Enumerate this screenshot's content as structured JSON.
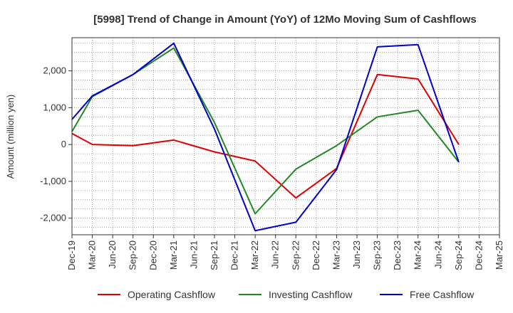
{
  "chart_data": {
    "type": "line",
    "title": "[5998]  Trend of Change in Amount (YoY) of 12Mo Moving Sum of Cashflows",
    "xlabel": "",
    "ylabel": "Amount (million yen)",
    "ylim": [
      -2450,
      2900
    ],
    "yticks": [
      -2000,
      -1000,
      0,
      1000,
      2000
    ],
    "ytick_labels": [
      "-2,000",
      "-1,000",
      "0",
      "1,000",
      "2,000"
    ],
    "categories": [
      "Dec-19",
      "Mar-20",
      "Jun-20",
      "Sep-20",
      "Dec-20",
      "Mar-21",
      "Jun-21",
      "Sep-21",
      "Dec-21",
      "Mar-22",
      "Jun-22",
      "Sep-22",
      "Dec-22",
      "Mar-23",
      "Jun-23",
      "Sep-23",
      "Dec-23",
      "Mar-24",
      "Jun-24",
      "Sep-24",
      "Dec-24",
      "Mar-25"
    ],
    "grid": true,
    "legend_position": "bottom",
    "series": [
      {
        "name": "Operating Cashflow",
        "color": "#dd0000",
        "values": [
          300,
          0,
          null,
          -30,
          null,
          120,
          null,
          -200,
          null,
          -450,
          null,
          -1450,
          null,
          -650,
          null,
          1900,
          null,
          1780,
          null,
          0,
          null,
          null
        ]
      },
      {
        "name": "Investing Cashflow",
        "color": "#228822",
        "values": [
          350,
          1300,
          null,
          1900,
          null,
          2620,
          null,
          600,
          null,
          -1880,
          null,
          -670,
          null,
          -30,
          null,
          750,
          null,
          930,
          null,
          -480,
          null,
          null
        ]
      },
      {
        "name": "Free Cashflow",
        "color": "#0000cc",
        "values": [
          680,
          1320,
          null,
          1900,
          null,
          2750,
          null,
          420,
          null,
          -2340,
          null,
          -2110,
          null,
          -680,
          null,
          2650,
          null,
          2710,
          null,
          -480,
          null,
          null
        ]
      }
    ]
  }
}
